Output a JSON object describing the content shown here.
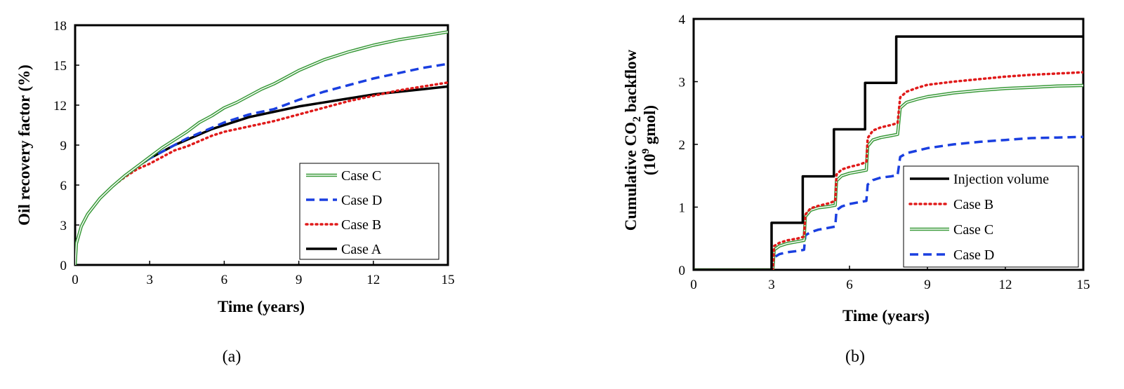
{
  "chart_data": [
    {
      "type": "line",
      "panel_label": "(a)",
      "xlabel": "Time (years)",
      "ylabel": "Oil recovery factor (%)",
      "xlim": [
        0,
        15
      ],
      "ylim": [
        0,
        18
      ],
      "xticks": [
        "0",
        "3",
        "6",
        "9",
        "12",
        "15"
      ],
      "yticks": [
        "0",
        "3",
        "6",
        "9",
        "12",
        "15",
        "18"
      ],
      "legend_position": "bottom-right",
      "legend_order": [
        0,
        1,
        2,
        3
      ],
      "series": [
        {
          "name": "Case C",
          "color": "#3a9a3a",
          "style": "double",
          "x": [
            0,
            0.05,
            0.25,
            0.5,
            1,
            1.5,
            2,
            2.5,
            3,
            3.5,
            4,
            4.5,
            5,
            5.5,
            6,
            6.5,
            7,
            7.5,
            8,
            9,
            10,
            11,
            12,
            13,
            14,
            15
          ],
          "y": [
            0,
            1.6,
            2.9,
            3.8,
            5.0,
            5.9,
            6.7,
            7.4,
            8.1,
            8.8,
            9.4,
            10.0,
            10.7,
            11.2,
            11.8,
            12.2,
            12.7,
            13.2,
            13.6,
            14.6,
            15.4,
            16.0,
            16.5,
            16.9,
            17.2,
            17.5
          ]
        },
        {
          "name": "Case D",
          "color": "#1a3fe0",
          "style": "dash",
          "x": [
            0,
            0.05,
            0.25,
            0.5,
            1,
            1.5,
            2,
            2.5,
            3,
            3.5,
            4,
            4.5,
            5,
            5.5,
            6,
            6.5,
            7,
            7.5,
            8,
            9,
            10,
            11,
            12,
            13,
            14,
            15
          ],
          "y": [
            0,
            1.6,
            2.9,
            3.8,
            5.0,
            5.9,
            6.7,
            7.4,
            8.0,
            8.5,
            9.0,
            9.5,
            9.9,
            10.3,
            10.7,
            11.0,
            11.3,
            11.5,
            11.7,
            12.4,
            13.0,
            13.5,
            14.0,
            14.4,
            14.8,
            15.1
          ]
        },
        {
          "name": "Case B",
          "color": "#e01a1a",
          "style": "dot",
          "x": [
            0,
            0.05,
            0.25,
            0.5,
            1,
            1.5,
            2,
            2.5,
            3,
            3.5,
            4,
            4.5,
            5,
            5.5,
            6,
            6.5,
            7,
            7.5,
            8,
            9,
            10,
            11,
            12,
            13,
            14,
            15
          ],
          "y": [
            0,
            1.6,
            2.9,
            3.8,
            5.0,
            5.9,
            6.6,
            7.2,
            7.6,
            8.1,
            8.6,
            8.9,
            9.3,
            9.7,
            10.0,
            10.2,
            10.4,
            10.6,
            10.8,
            11.3,
            11.8,
            12.3,
            12.7,
            13.1,
            13.4,
            13.7
          ]
        },
        {
          "name": "Case A",
          "color": "#000000",
          "style": "solid",
          "x": [
            0,
            0.05,
            0.25,
            0.5,
            1,
            1.5,
            2,
            2.5,
            3,
            3.5,
            4,
            4.5,
            5,
            5.5,
            6,
            6.5,
            7,
            7.5,
            8,
            9,
            10,
            11,
            12,
            13,
            14,
            15
          ],
          "y": [
            0,
            1.6,
            2.9,
            3.8,
            5.0,
            5.9,
            6.7,
            7.4,
            8.0,
            8.5,
            9.0,
            9.4,
            9.8,
            10.2,
            10.5,
            10.8,
            11.1,
            11.3,
            11.5,
            11.9,
            12.2,
            12.5,
            12.8,
            13.0,
            13.2,
            13.4
          ]
        }
      ]
    },
    {
      "type": "line",
      "panel_label": "(b)",
      "xlabel": "Time (years)",
      "ylabel_line1": "Cumulative CO",
      "ylabel_sub": "2",
      "ylabel_line1_end": " backflow",
      "ylabel_line2_pre": "(10",
      "ylabel_sup": "9",
      "ylabel_line2_end": " gmol)",
      "xlim": [
        0,
        15
      ],
      "ylim": [
        0,
        4
      ],
      "xticks": [
        "0",
        "3",
        "6",
        "9",
        "12",
        "15"
      ],
      "yticks": [
        "0",
        "1",
        "2",
        "3",
        "4"
      ],
      "legend_position": "bottom-right",
      "legend_order": [
        0,
        1,
        2,
        3
      ],
      "series": [
        {
          "name": "Injection volume",
          "color": "#000000",
          "style": "solid",
          "x": [
            0,
            3.0,
            3.0,
            4.2,
            4.2,
            5.4,
            5.4,
            6.6,
            6.6,
            7.8,
            7.8,
            15
          ],
          "y": [
            0,
            0,
            0.75,
            0.75,
            1.49,
            1.49,
            2.24,
            2.24,
            2.98,
            2.98,
            3.72,
            3.72
          ]
        },
        {
          "name": "Case B",
          "color": "#e01a1a",
          "style": "dot",
          "x": [
            0,
            3.05,
            3.1,
            3.3,
            3.6,
            4.0,
            4.25,
            4.3,
            4.5,
            4.8,
            5.2,
            5.45,
            5.5,
            5.7,
            6.0,
            6.4,
            6.65,
            6.7,
            6.9,
            7.2,
            7.6,
            7.85,
            7.95,
            8.2,
            8.6,
            9,
            10,
            11,
            12,
            13,
            14,
            15
          ],
          "y": [
            0,
            0,
            0.38,
            0.43,
            0.47,
            0.5,
            0.53,
            0.88,
            0.98,
            1.02,
            1.06,
            1.1,
            1.52,
            1.6,
            1.64,
            1.68,
            1.72,
            2.1,
            2.22,
            2.27,
            2.31,
            2.34,
            2.75,
            2.84,
            2.9,
            2.95,
            3.0,
            3.04,
            3.08,
            3.11,
            3.13,
            3.15
          ]
        },
        {
          "name": "Case C",
          "color": "#3a9a3a",
          "style": "double",
          "x": [
            0,
            3.05,
            3.1,
            3.3,
            3.6,
            4.0,
            4.25,
            4.3,
            4.5,
            4.8,
            5.2,
            5.45,
            5.5,
            5.7,
            6.0,
            6.4,
            6.65,
            6.7,
            6.9,
            7.2,
            7.6,
            7.85,
            7.95,
            8.2,
            8.6,
            9,
            10,
            11,
            12,
            13,
            14,
            15
          ],
          "y": [
            0,
            0,
            0.32,
            0.38,
            0.42,
            0.45,
            0.47,
            0.85,
            0.95,
            0.99,
            1.01,
            1.03,
            1.42,
            1.5,
            1.54,
            1.57,
            1.59,
            1.97,
            2.07,
            2.11,
            2.14,
            2.16,
            2.58,
            2.67,
            2.72,
            2.76,
            2.82,
            2.86,
            2.89,
            2.91,
            2.93,
            2.94
          ]
        },
        {
          "name": "Case D",
          "color": "#1a3fe0",
          "style": "dash",
          "x": [
            0,
            3.05,
            3.1,
            3.3,
            3.6,
            4.0,
            4.25,
            4.3,
            4.5,
            4.8,
            5.2,
            5.45,
            5.5,
            5.7,
            6.0,
            6.4,
            6.65,
            6.7,
            6.9,
            7.2,
            7.6,
            7.85,
            7.95,
            8.2,
            8.6,
            9,
            10,
            11,
            12,
            13,
            14,
            15
          ],
          "y": [
            0,
            0,
            0.2,
            0.25,
            0.28,
            0.3,
            0.32,
            0.55,
            0.6,
            0.64,
            0.67,
            0.69,
            0.95,
            1.01,
            1.05,
            1.08,
            1.1,
            1.36,
            1.43,
            1.47,
            1.49,
            1.51,
            1.8,
            1.86,
            1.9,
            1.94,
            2.0,
            2.04,
            2.07,
            2.1,
            2.11,
            2.12
          ]
        }
      ]
    }
  ]
}
